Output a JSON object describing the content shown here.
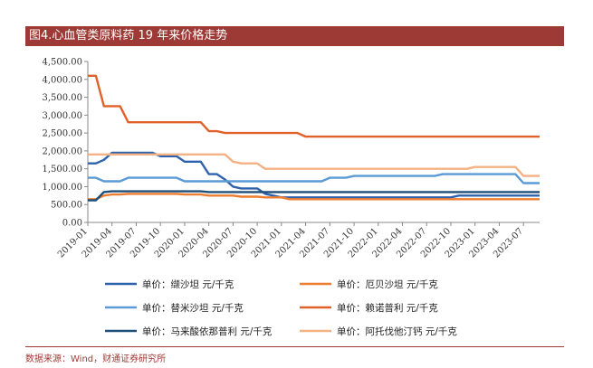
{
  "title": "图4.心血管类原料药 19 年来价格走势",
  "source": "数据来源：Wind，财通证券研究所",
  "chart_data": {
    "type": "line",
    "ylim": [
      0,
      4500
    ],
    "y_ticks": [
      0,
      500,
      1000,
      1500,
      2000,
      2500,
      3000,
      3500,
      4000,
      4500
    ],
    "y_tick_labels": [
      "0.00",
      "500.00",
      "1,000.00",
      "1,500.00",
      "2,000.00",
      "2,500.00",
      "3,000.00",
      "3,500.00",
      "4,000.00",
      "4,500.00"
    ],
    "x_tick_labels": [
      "2019-01",
      "2019-04",
      "2019-07",
      "2019-10",
      "2020-01",
      "2020-04",
      "2020-07",
      "2020-10",
      "2021-01",
      "2021-04",
      "2021-07",
      "2021-10",
      "2022-01",
      "2022-04",
      "2022-07",
      "2022-10",
      "2023-01",
      "2023-04",
      "2023-07"
    ],
    "x_start": "2019-01",
    "x_end": "2023-09",
    "grid": false,
    "legend_position": "bottom",
    "series": [
      {
        "name": "单价：缬沙坦 元/千克",
        "color": "#2f62ad",
        "points": [
          [
            "2019-01",
            1650
          ],
          [
            "2019-02",
            1650
          ],
          [
            "2019-03",
            1750
          ],
          [
            "2019-04",
            1950
          ],
          [
            "2019-05",
            1950
          ],
          [
            "2019-09",
            1950
          ],
          [
            "2019-10",
            1850
          ],
          [
            "2019-12",
            1850
          ],
          [
            "2020-01",
            1700
          ],
          [
            "2020-03",
            1700
          ],
          [
            "2020-04",
            1350
          ],
          [
            "2020-05",
            1350
          ],
          [
            "2020-06",
            1200
          ],
          [
            "2020-07",
            1000
          ],
          [
            "2020-08",
            950
          ],
          [
            "2020-09",
            950
          ],
          [
            "2020-10",
            950
          ],
          [
            "2020-11",
            800
          ],
          [
            "2021-01",
            700
          ],
          [
            "2021-02",
            700
          ],
          [
            "2022-10",
            700
          ],
          [
            "2022-11",
            750
          ],
          [
            "2023-09",
            750
          ]
        ]
      },
      {
        "name": "单价：厄贝沙坦 元/千克",
        "color": "#ed7d31",
        "points": [
          [
            "2019-01",
            650
          ],
          [
            "2019-02",
            650
          ],
          [
            "2019-03",
            750
          ],
          [
            "2019-04",
            780
          ],
          [
            "2019-05",
            780
          ],
          [
            "2019-06",
            800
          ],
          [
            "2019-07",
            800
          ],
          [
            "2019-12",
            800
          ],
          [
            "2020-01",
            780
          ],
          [
            "2020-03",
            780
          ],
          [
            "2020-04",
            750
          ],
          [
            "2020-07",
            750
          ],
          [
            "2020-08",
            720
          ],
          [
            "2020-10",
            720
          ],
          [
            "2020-11",
            700
          ],
          [
            "2021-01",
            700
          ],
          [
            "2021-02",
            650
          ],
          [
            "2023-09",
            650
          ]
        ]
      },
      {
        "name": "单价：替米沙坦 元/千克",
        "color": "#5b9bd5",
        "points": [
          [
            "2019-01",
            1250
          ],
          [
            "2019-02",
            1250
          ],
          [
            "2019-03",
            1150
          ],
          [
            "2019-05",
            1150
          ],
          [
            "2019-06",
            1250
          ],
          [
            "2019-12",
            1250
          ],
          [
            "2020-01",
            1150
          ],
          [
            "2021-06",
            1150
          ],
          [
            "2021-07",
            1250
          ],
          [
            "2021-09",
            1250
          ],
          [
            "2021-10",
            1300
          ],
          [
            "2022-08",
            1300
          ],
          [
            "2022-09",
            1350
          ],
          [
            "2023-06",
            1350
          ],
          [
            "2023-07",
            1100
          ],
          [
            "2023-09",
            1100
          ]
        ]
      },
      {
        "name": "单价：赖诺普利 元/千克",
        "color": "#e0622a",
        "points": [
          [
            "2019-01",
            4100
          ],
          [
            "2019-02",
            4100
          ],
          [
            "2019-03",
            3250
          ],
          [
            "2019-05",
            3250
          ],
          [
            "2019-06",
            2800
          ],
          [
            "2019-07",
            2800
          ],
          [
            "2020-03",
            2800
          ],
          [
            "2020-04",
            2550
          ],
          [
            "2020-05",
            2550
          ],
          [
            "2020-06",
            2500
          ],
          [
            "2021-03",
            2500
          ],
          [
            "2021-04",
            2400
          ],
          [
            "2023-09",
            2400
          ]
        ]
      },
      {
        "name": "单价：马来酸依那普利 元/千克",
        "color": "#1f4e79",
        "points": [
          [
            "2019-01",
            620
          ],
          [
            "2019-02",
            620
          ],
          [
            "2019-03",
            850
          ],
          [
            "2019-04",
            870
          ],
          [
            "2020-03",
            870
          ],
          [
            "2020-04",
            850
          ],
          [
            "2023-09",
            850
          ]
        ]
      },
      {
        "name": "单价：阿托伐他汀钙 元/千克",
        "color": "#f4b183",
        "points": [
          [
            "2019-01",
            1900
          ],
          [
            "2019-02",
            1900
          ],
          [
            "2020-06",
            1900
          ],
          [
            "2020-07",
            1700
          ],
          [
            "2020-08",
            1650
          ],
          [
            "2020-09",
            1650
          ],
          [
            "2020-10",
            1650
          ],
          [
            "2020-11",
            1500
          ],
          [
            "2022-12",
            1500
          ],
          [
            "2023-01",
            1550
          ],
          [
            "2023-06",
            1550
          ],
          [
            "2023-07",
            1300
          ],
          [
            "2023-09",
            1300
          ]
        ]
      }
    ]
  }
}
